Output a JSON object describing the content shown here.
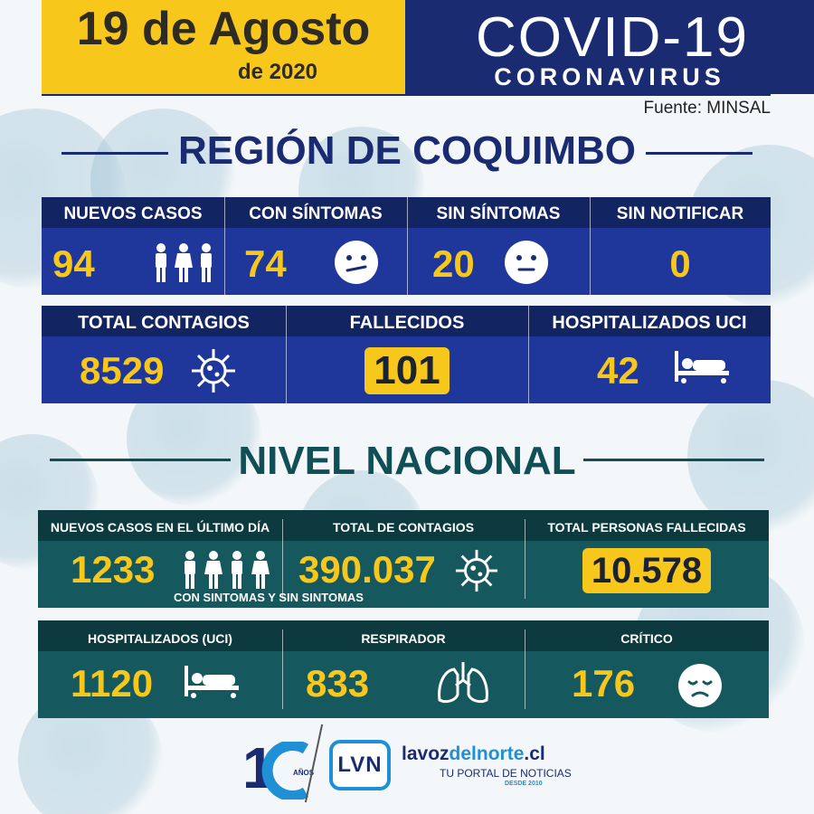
{
  "header": {
    "date": "19 de Agosto",
    "year": "de 2020",
    "title": "COVID-19",
    "subtitle": "CORONAVIRUS",
    "source": "Fuente: MINSAL"
  },
  "region": {
    "title": "REGIÓN DE COQUIMBO",
    "row1": [
      {
        "label": "NUEVOS CASOS",
        "value": "94",
        "icon": "people-icon"
      },
      {
        "label": "CON SÍNTOMAS",
        "value": "74",
        "icon": "sick-face-icon"
      },
      {
        "label": "SIN SÍNTOMAS",
        "value": "20",
        "icon": "neutral-face-icon"
      },
      {
        "label": "SIN NOTIFICAR",
        "value": "0"
      }
    ],
    "row2": [
      {
        "label": "TOTAL CONTAGIOS",
        "value": "8529",
        "icon": "virus-icon"
      },
      {
        "label": "FALLECIDOS",
        "value": "101"
      },
      {
        "label": "HOSPITALIZADOS UCI",
        "value": "42",
        "icon": "hospital-bed-icon"
      }
    ]
  },
  "national": {
    "title": "NIVEL NACIONAL",
    "row1": [
      {
        "label": "NUEVOS CASOS EN EL ÚLTIMO DÍA",
        "value": "1233",
        "icon": "people-icon",
        "note": "CON SINTOMAS Y SIN SINTOMAS"
      },
      {
        "label": "TOTAL DE CONTAGIOS",
        "value": "390.037",
        "icon": "virus-icon"
      },
      {
        "label": "TOTAL PERSONAS FALLECIDAS",
        "value": "10.578"
      }
    ],
    "row2": [
      {
        "label": "HOSPITALIZADOS (UCI)",
        "value": "1120",
        "icon": "hospital-bed-icon"
      },
      {
        "label": "RESPIRADOR",
        "value": "833",
        "icon": "lungs-icon"
      },
      {
        "label": "CRÍTICO",
        "value": "176",
        "icon": "sad-face-icon"
      }
    ]
  },
  "footer": {
    "anniversary": "1",
    "anniversary_sub": "AÑOS",
    "brand_mark": "LVN",
    "brand_prefix": "lavoz",
    "brand_highlight": "delnorte",
    "brand_suffix": ".cl",
    "tagline": "TU PORTAL DE NOTICIAS",
    "since": "DESDE 2010"
  },
  "colors": {
    "yellow": "#f7c81b",
    "navy": "#1a2b72",
    "teal": "#15585e",
    "dark_teal": "#0c3a3f"
  }
}
